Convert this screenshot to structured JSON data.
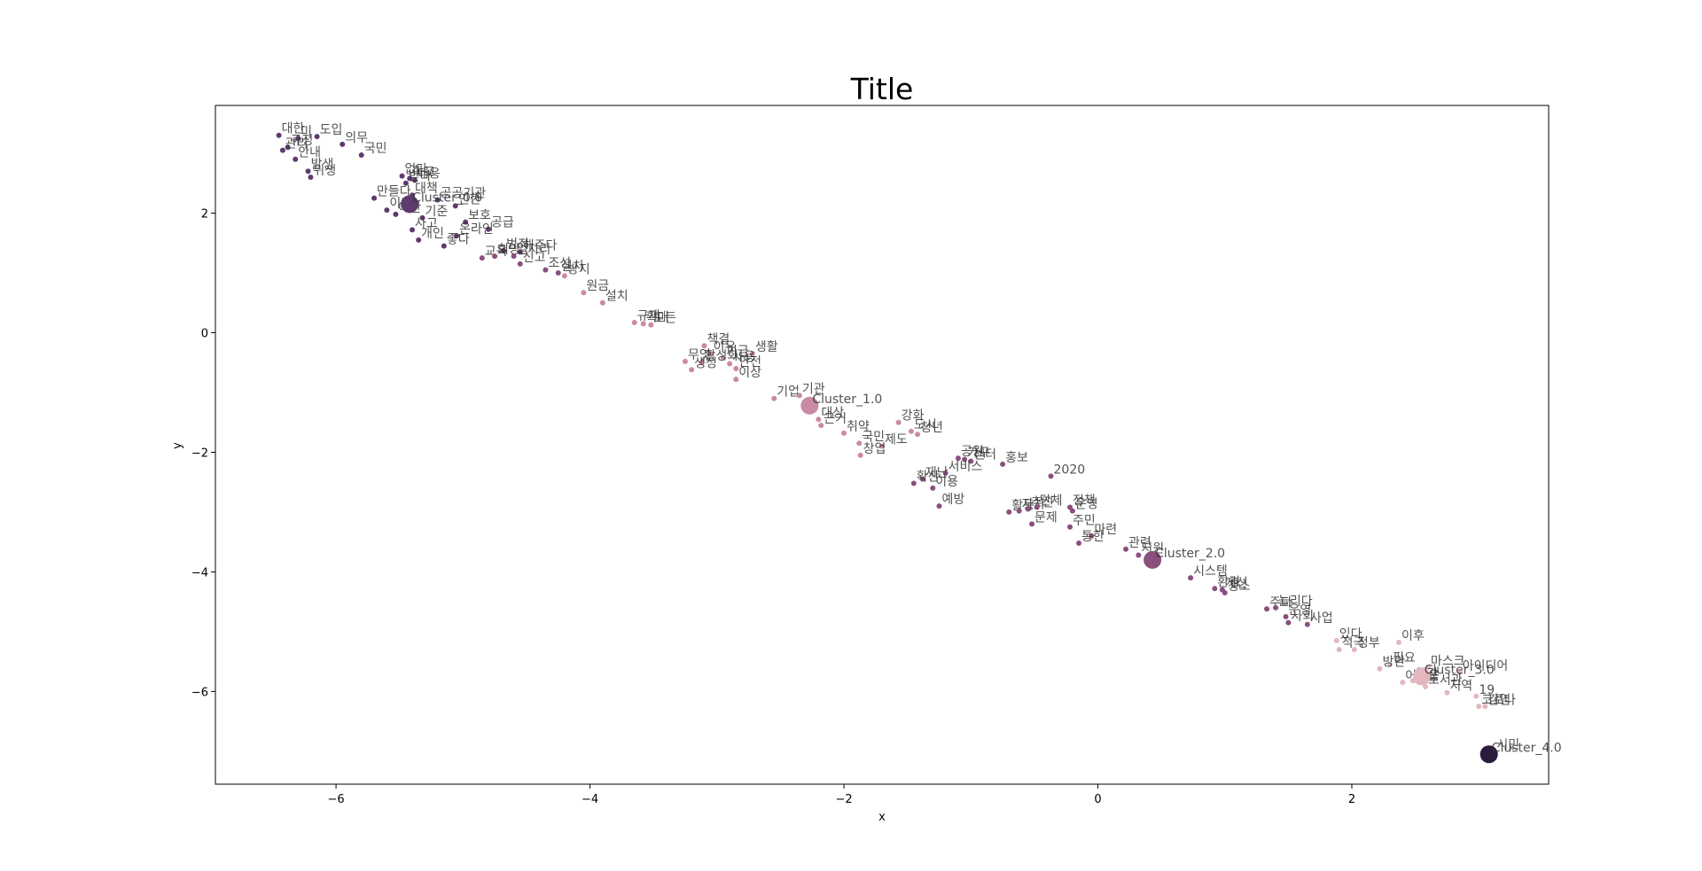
{
  "chart_data": {
    "type": "scatter",
    "title": "Title",
    "xlabel": "x",
    "ylabel": "y",
    "xlim": [
      -6.95,
      3.55
    ],
    "ylim": [
      -7.55,
      3.8
    ],
    "xticks": [
      -6,
      -4,
      -2,
      0,
      2
    ],
    "yticks": [
      -6,
      -4,
      -2,
      0,
      2
    ],
    "grid": false,
    "cluster_colors": {
      "0": "#5e3b6e",
      "1": "#c98aa3",
      "2": "#8a4f7d",
      "3": "#e3b7bf",
      "4": "#2b1b3b"
    },
    "points": [
      {
        "label": "대한",
        "x": -6.45,
        "y": 3.3,
        "cluster": 0
      },
      {
        "label": "도입",
        "x": -6.15,
        "y": 3.28,
        "cluster": 0
      },
      {
        "label": "미",
        "x": -6.3,
        "y": 3.25,
        "cluster": 0
      },
      {
        "label": "의무",
        "x": -5.95,
        "y": 3.15,
        "cluster": 0
      },
      {
        "label": "규정",
        "x": -6.38,
        "y": 3.1,
        "cluster": 0
      },
      {
        "label": "국민",
        "x": -5.8,
        "y": 2.97,
        "cluster": 0
      },
      {
        "label": "관리",
        "x": -6.42,
        "y": 3.05,
        "cluster": 0
      },
      {
        "label": "안내",
        "x": -6.32,
        "y": 2.9,
        "cluster": 0
      },
      {
        "label": "발생",
        "x": -6.22,
        "y": 2.7,
        "cluster": 0
      },
      {
        "label": "위생",
        "x": -6.2,
        "y": 2.6,
        "cluster": 0
      },
      {
        "label": "없다",
        "x": -5.48,
        "y": 2.62,
        "cluster": 0
      },
      {
        "label": "학교",
        "x": -5.42,
        "y": 2.58,
        "cluster": 0
      },
      {
        "label": "대응",
        "x": -5.38,
        "y": 2.55,
        "cluster": 0
      },
      {
        "label": "받다",
        "x": -5.45,
        "y": 2.5,
        "cluster": 0
      },
      {
        "label": "대책",
        "x": -5.4,
        "y": 2.3,
        "cluster": 0
      },
      {
        "label": "공공기관",
        "x": -5.2,
        "y": 2.22,
        "cluster": 0
      },
      {
        "label": "만들다",
        "x": -5.7,
        "y": 2.25,
        "cluster": 0
      },
      {
        "label": "Cluster_0.0",
        "x": -5.42,
        "y": 2.15,
        "cluster": 0,
        "centroid": true
      },
      {
        "label": "인한",
        "x": -5.06,
        "y": 2.12,
        "cluster": 0
      },
      {
        "label": "이다",
        "x": -5.6,
        "y": 2.05,
        "cluster": 0
      },
      {
        "label": "예산",
        "x": -5.53,
        "y": 1.98,
        "cluster": 0
      },
      {
        "label": "기준",
        "x": -5.32,
        "y": 1.92,
        "cluster": 0
      },
      {
        "label": "보호",
        "x": -4.98,
        "y": 1.85,
        "cluster": 0
      },
      {
        "label": "공급",
        "x": -4.8,
        "y": 1.73,
        "cluster": 0
      },
      {
        "label": "사고",
        "x": -5.4,
        "y": 1.72,
        "cluster": 0
      },
      {
        "label": "온라인",
        "x": -5.05,
        "y": 1.62,
        "cluster": 0
      },
      {
        "label": "개인",
        "x": -5.35,
        "y": 1.55,
        "cluster": 0
      },
      {
        "label": "좋다",
        "x": -5.15,
        "y": 1.45,
        "cluster": 0
      },
      {
        "label": "범죄",
        "x": -4.68,
        "y": 1.37,
        "cluster": 0
      },
      {
        "label": "해주다",
        "x": -4.55,
        "y": 1.35,
        "cluster": 0
      },
      {
        "label": "교육",
        "x": -4.85,
        "y": 1.25,
        "cluster": 2
      },
      {
        "label": "희망",
        "x": -4.75,
        "y": 1.28,
        "cluster": 2
      },
      {
        "label": "일자리",
        "x": -4.6,
        "y": 1.28,
        "cluster": 2
      },
      {
        "label": "신고",
        "x": -4.55,
        "y": 1.15,
        "cluster": 2
      },
      {
        "label": "조성",
        "x": -4.35,
        "y": 1.05,
        "cluster": 2
      },
      {
        "label": "설치",
        "x": -4.25,
        "y": 1.0,
        "cluster": 2
      },
      {
        "label": "방지",
        "x": -4.2,
        "y": 0.95,
        "cluster": 1
      },
      {
        "label": "원금",
        "x": -4.05,
        "y": 0.67,
        "cluster": 1
      },
      {
        "label": "설치",
        "x": -3.9,
        "y": 0.5,
        "cluster": 1
      },
      {
        "label": "규제",
        "x": -3.65,
        "y": 0.17,
        "cluster": 1
      },
      {
        "label": "확대",
        "x": -3.58,
        "y": 0.15,
        "cluster": 1
      },
      {
        "label": "모든",
        "x": -3.52,
        "y": 0.13,
        "cluster": 1
      },
      {
        "label": "책결",
        "x": -3.1,
        "y": -0.22,
        "cluster": 1
      },
      {
        "label": "이유",
        "x": -3.05,
        "y": -0.35,
        "cluster": 1
      },
      {
        "label": "생활",
        "x": -2.72,
        "y": -0.35,
        "cluster": 1
      },
      {
        "label": "기금",
        "x": -2.95,
        "y": -0.42,
        "cluster": 1
      },
      {
        "label": "무엇",
        "x": -3.25,
        "y": -0.48,
        "cluster": 1
      },
      {
        "label": "활성화",
        "x": -3.12,
        "y": -0.5,
        "cluster": 1
      },
      {
        "label": "사용",
        "x": -2.9,
        "y": -0.52,
        "cluster": 1
      },
      {
        "label": "생성",
        "x": -3.2,
        "y": -0.62,
        "cluster": 1
      },
      {
        "label": "안전",
        "x": -2.85,
        "y": -0.6,
        "cluster": 1
      },
      {
        "label": "이상",
        "x": -2.85,
        "y": -0.78,
        "cluster": 1
      },
      {
        "label": "기업",
        "x": -2.55,
        "y": -1.1,
        "cluster": 1
      },
      {
        "label": "기관",
        "x": -2.35,
        "y": -1.05,
        "cluster": 1
      },
      {
        "label": "Cluster_1.0",
        "x": -2.27,
        "y": -1.22,
        "cluster": 1,
        "centroid": true
      },
      {
        "label": "대상",
        "x": -2.2,
        "y": -1.45,
        "cluster": 1
      },
      {
        "label": "근거",
        "x": -2.18,
        "y": -1.55,
        "cluster": 1
      },
      {
        "label": "취약",
        "x": -2.0,
        "y": -1.68,
        "cluster": 1
      },
      {
        "label": "강화",
        "x": -1.57,
        "y": -1.5,
        "cluster": 1
      },
      {
        "label": "도시",
        "x": -1.47,
        "y": -1.65,
        "cluster": 1
      },
      {
        "label": "청년",
        "x": -1.42,
        "y": -1.7,
        "cluster": 1
      },
      {
        "label": "국민",
        "x": -1.88,
        "y": -1.85,
        "cluster": 1
      },
      {
        "label": "제도",
        "x": -1.7,
        "y": -1.9,
        "cluster": 1
      },
      {
        "label": "창업",
        "x": -1.87,
        "y": -2.05,
        "cluster": 1
      },
      {
        "label": "공원",
        "x": -1.1,
        "y": -2.1,
        "cluster": 2
      },
      {
        "label": "가구",
        "x": -1.05,
        "y": -2.12,
        "cluster": 2
      },
      {
        "label": "센터",
        "x": -1.0,
        "y": -2.15,
        "cluster": 2
      },
      {
        "label": "홍보",
        "x": -0.75,
        "y": -2.2,
        "cluster": 2
      },
      {
        "label": "서비스",
        "x": -1.2,
        "y": -2.35,
        "cluster": 2
      },
      {
        "label": "재난",
        "x": -1.38,
        "y": -2.45,
        "cluster": 2
      },
      {
        "label": "2020",
        "x": -0.37,
        "y": -2.4,
        "cluster": 2
      },
      {
        "label": "확산",
        "x": -1.45,
        "y": -2.52,
        "cluster": 2
      },
      {
        "label": "이용",
        "x": -1.3,
        "y": -2.6,
        "cluster": 2
      },
      {
        "label": "예방",
        "x": -1.25,
        "y": -2.9,
        "cluster": 2
      },
      {
        "label": "활동",
        "x": -0.7,
        "y": -3.0,
        "cluster": 2
      },
      {
        "label": "자치",
        "x": -0.62,
        "y": -2.98,
        "cluster": 2
      },
      {
        "label": "추진",
        "x": -0.55,
        "y": -2.95,
        "cluster": 2
      },
      {
        "label": "단체",
        "x": -0.48,
        "y": -2.92,
        "cluster": 2
      },
      {
        "label": "정책",
        "x": -0.22,
        "y": -2.92,
        "cluster": 2
      },
      {
        "label": "운영",
        "x": -0.2,
        "y": -2.98,
        "cluster": 2
      },
      {
        "label": "문제",
        "x": -0.52,
        "y": -3.2,
        "cluster": 2
      },
      {
        "label": "주민",
        "x": -0.22,
        "y": -3.25,
        "cluster": 2
      },
      {
        "label": "마련",
        "x": -0.05,
        "y": -3.4,
        "cluster": 2
      },
      {
        "label": "통한",
        "x": -0.15,
        "y": -3.52,
        "cluster": 2
      },
      {
        "label": "관련",
        "x": 0.22,
        "y": -3.62,
        "cluster": 2
      },
      {
        "label": "지원",
        "x": 0.32,
        "y": -3.72,
        "cluster": 2
      },
      {
        "label": "Cluster_2.0",
        "x": 0.43,
        "y": -3.8,
        "cluster": 2,
        "centroid": true
      },
      {
        "label": "시스템",
        "x": 0.73,
        "y": -4.1,
        "cluster": 2
      },
      {
        "label": "환경",
        "x": 0.92,
        "y": -4.28,
        "cluster": 2
      },
      {
        "label": "개선",
        "x": 0.98,
        "y": -4.3,
        "cluster": 2
      },
      {
        "label": "청소",
        "x": 1.0,
        "y": -4.35,
        "cluster": 2
      },
      {
        "label": "주다",
        "x": 1.33,
        "y": -4.62,
        "cluster": 2
      },
      {
        "label": "늘리다",
        "x": 1.4,
        "y": -4.6,
        "cluster": 2
      },
      {
        "label": "운영",
        "x": 1.48,
        "y": -4.75,
        "cluster": 2
      },
      {
        "label": "사회",
        "x": 1.5,
        "y": -4.85,
        "cluster": 2
      },
      {
        "label": "사업",
        "x": 1.65,
        "y": -4.88,
        "cluster": 2
      },
      {
        "label": "있다",
        "x": 1.88,
        "y": -5.15,
        "cluster": 3
      },
      {
        "label": "이후",
        "x": 2.37,
        "y": -5.18,
        "cluster": 3
      },
      {
        "label": "적극",
        "x": 1.9,
        "y": -5.3,
        "cluster": 3
      },
      {
        "label": "정부",
        "x": 2.02,
        "y": -5.3,
        "cluster": 3
      },
      {
        "label": "필요",
        "x": 2.3,
        "y": -5.55,
        "cluster": 3
      },
      {
        "label": "방안",
        "x": 2.22,
        "y": -5.62,
        "cluster": 3
      },
      {
        "label": "마스크",
        "x": 2.6,
        "y": -5.6,
        "cluster": 3
      },
      {
        "label": "아이디어",
        "x": 2.85,
        "y": -5.68,
        "cluster": 3
      },
      {
        "label": "Cluster_3.0",
        "x": 2.55,
        "y": -5.75,
        "cluster": 3,
        "centroid": true
      },
      {
        "label": "어려움",
        "x": 2.4,
        "y": -5.85,
        "cluster": 3
      },
      {
        "label": "공간",
        "x": 2.48,
        "y": -5.82,
        "cluster": 3
      },
      {
        "label": "도서관",
        "x": 2.58,
        "y": -5.92,
        "cluster": 3
      },
      {
        "label": "지역",
        "x": 2.75,
        "y": -6.02,
        "cluster": 3
      },
      {
        "label": "19",
        "x": 2.98,
        "y": -6.08,
        "cluster": 3
      },
      {
        "label": "코로나",
        "x": 3.0,
        "y": -6.25,
        "cluster": 3
      },
      {
        "label": "감염",
        "x": 3.05,
        "y": -6.25,
        "cluster": 3
      },
      {
        "label": "시민",
        "x": 3.12,
        "y": -7.0,
        "cluster": 4
      },
      {
        "label": "Cluster_4.0",
        "x": 3.08,
        "y": -7.05,
        "cluster": 4,
        "centroid": true
      }
    ]
  }
}
